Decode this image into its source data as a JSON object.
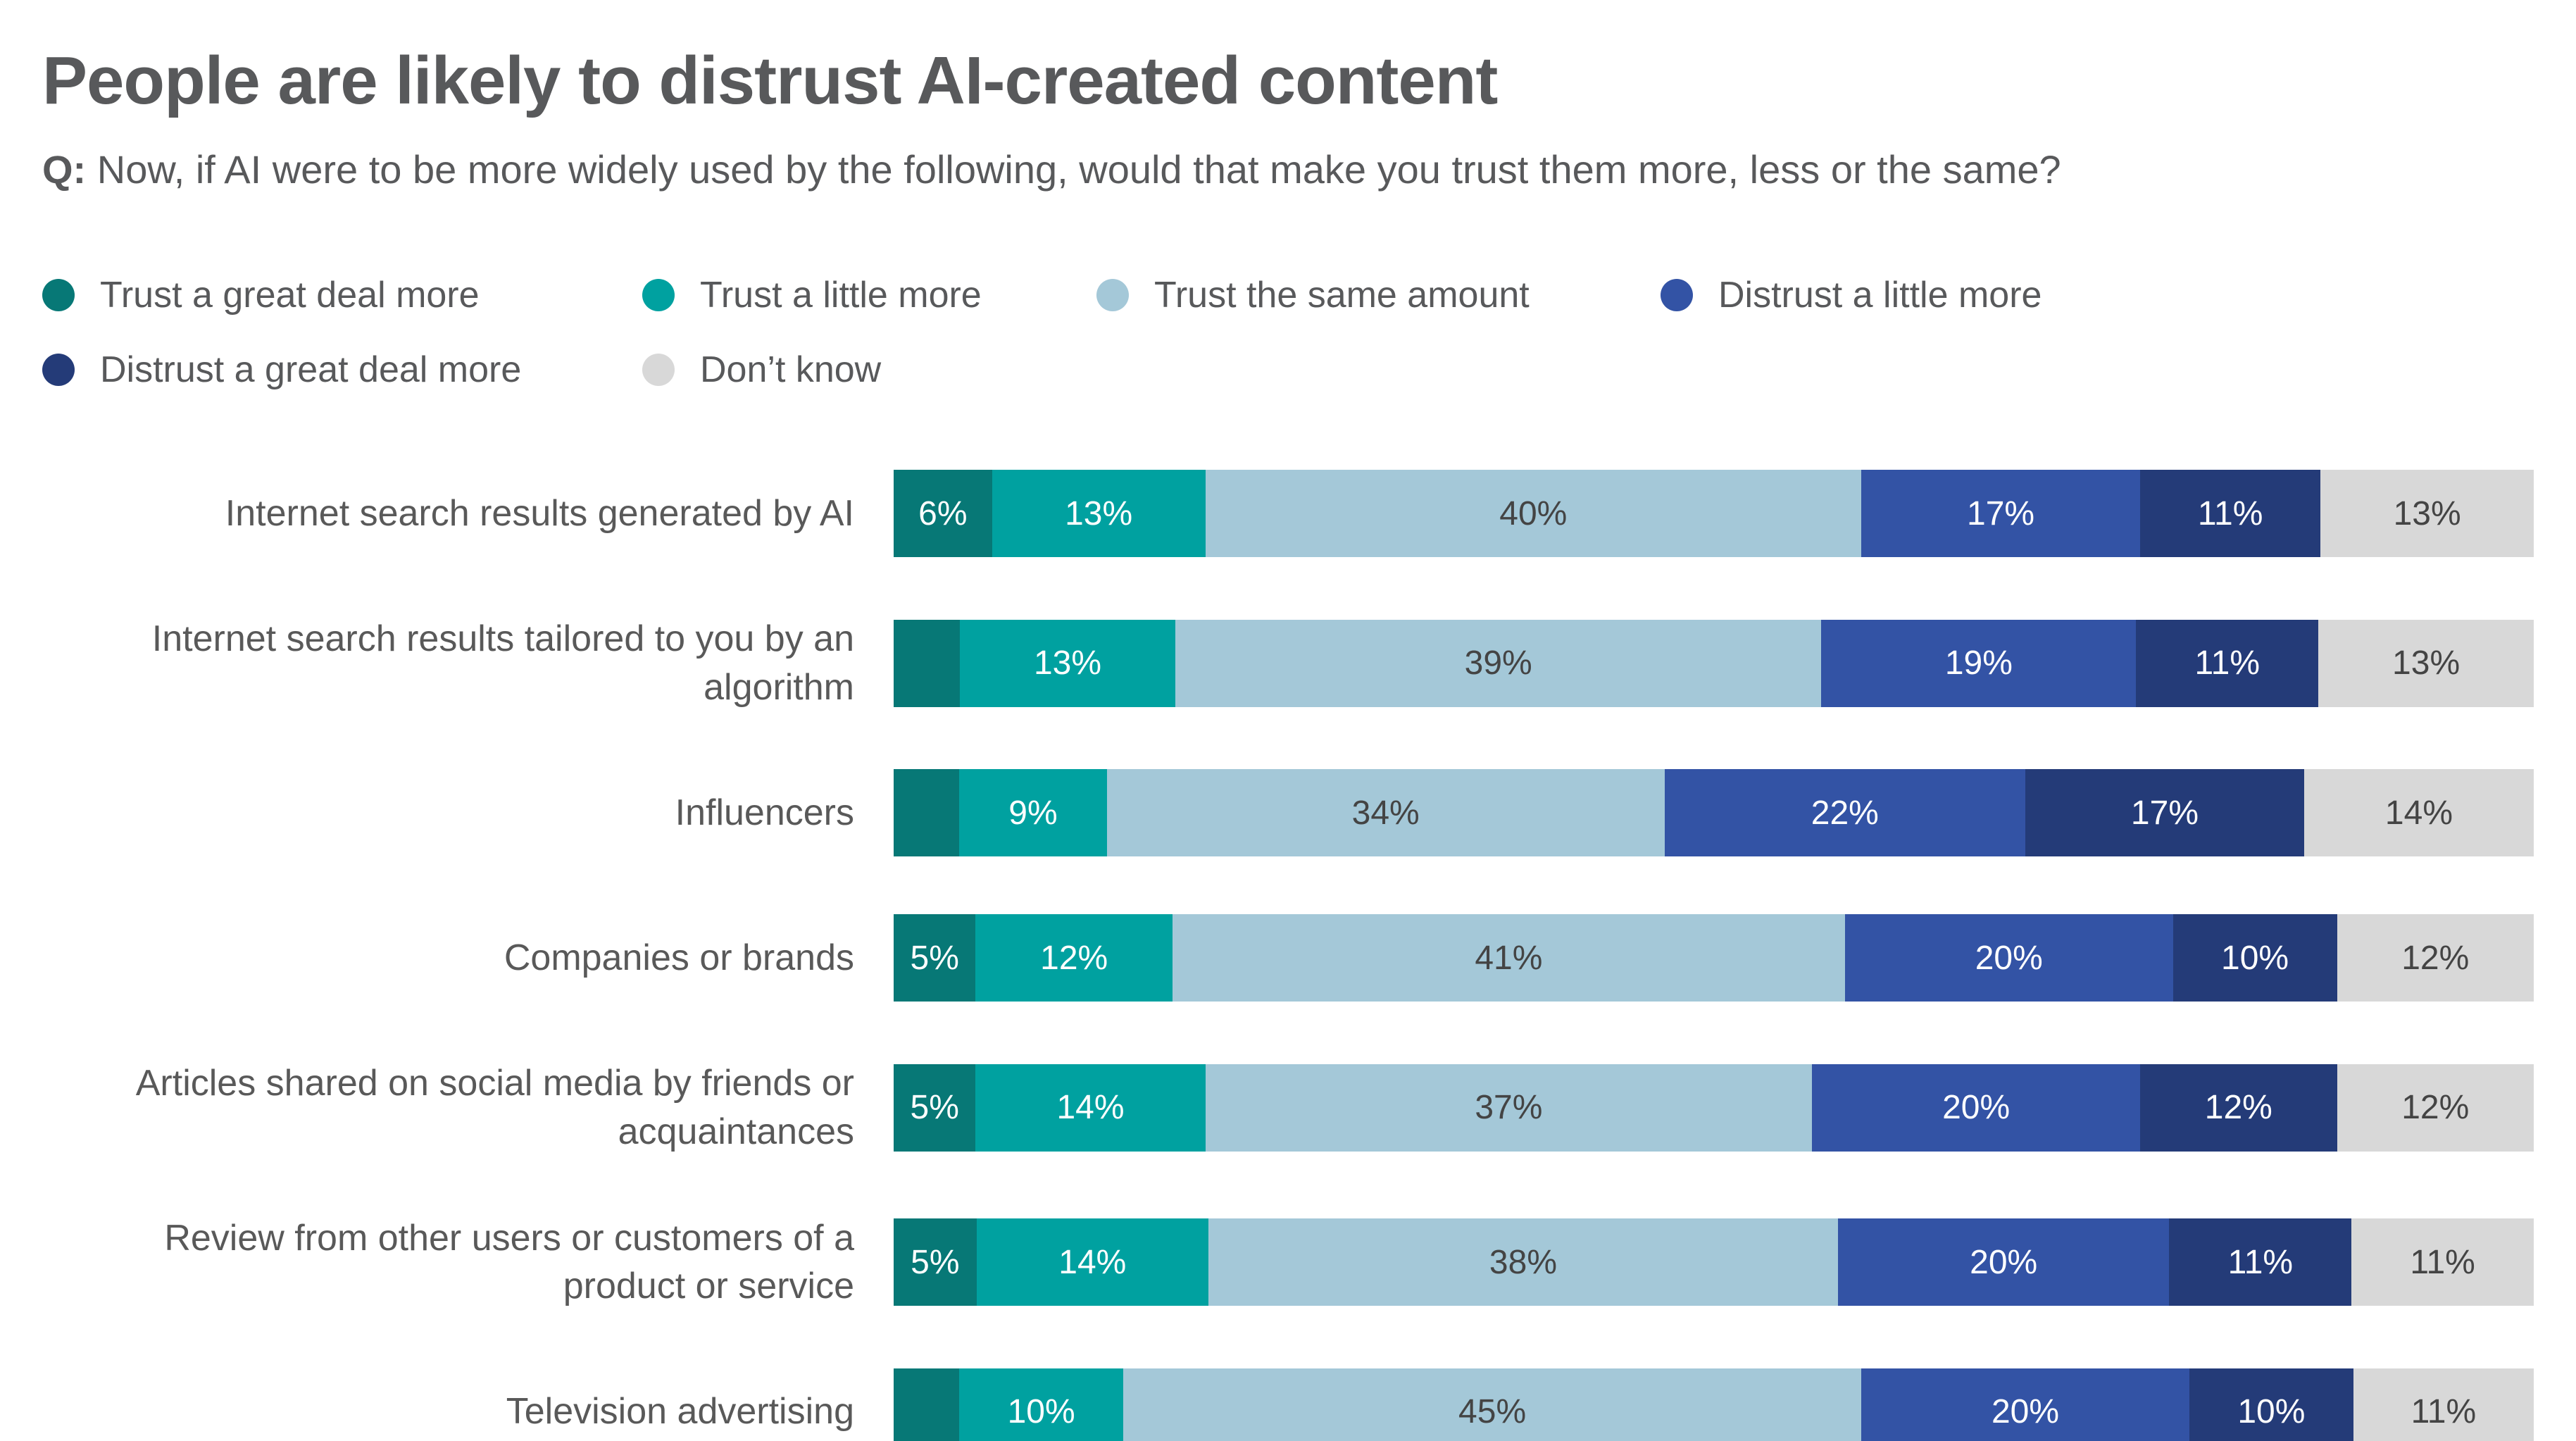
{
  "header": {
    "title": "People are likely to distrust AI-created content",
    "question_prefix": "Q:",
    "question": "Now, if AI were to be more widely used by the following, would that make you trust them more, less or the same?"
  },
  "colors": {
    "heading_text": "#58595B",
    "category_text": "#595959",
    "value_text_dark": "#444444",
    "value_text_light": "#FFFFFF",
    "background": "#FFFFFF"
  },
  "chart_data": {
    "type": "bar",
    "orientation": "horizontal",
    "stacked": true,
    "axis_visible": false,
    "grid": false,
    "legend_position": "top",
    "xlim": [
      0,
      100
    ],
    "unit": "%",
    "series": [
      {
        "name": "Trust a great deal more",
        "color": "#077876"
      },
      {
        "name": "Trust a little more",
        "color": "#00A1A0"
      },
      {
        "name": "Trust the same amount",
        "color": "#A4C8D8"
      },
      {
        "name": "Distrust a little more",
        "color": "#3353A5"
      },
      {
        "name": "Distrust a great deal more",
        "color": "#243B78"
      },
      {
        "name": "Don’t know",
        "color": "#D8D8D8"
      }
    ],
    "value_label_colors": [
      "#FFFFFF",
      "#FFFFFF",
      "#444444",
      "#FFFFFF",
      "#FFFFFF",
      "#444444"
    ],
    "rows": [
      {
        "category": "Internet search results generated by AI",
        "values": [
          6,
          13,
          40,
          17,
          11,
          13
        ],
        "labels": [
          "6%",
          "13%",
          "40%",
          "17%",
          "11%",
          "13%"
        ]
      },
      {
        "category": "Internet search results tailored to you by an algorithm",
        "values": [
          4,
          13,
          39,
          19,
          11,
          13
        ],
        "labels": [
          "",
          "13%",
          "39%",
          "19%",
          "11%",
          "13%"
        ]
      },
      {
        "category": "Influencers",
        "values": [
          4,
          9,
          34,
          22,
          17,
          14
        ],
        "labels": [
          "",
          "9%",
          "34%",
          "22%",
          "17%",
          "14%"
        ]
      },
      {
        "category": "Companies or brands",
        "values": [
          5,
          12,
          41,
          20,
          10,
          12
        ],
        "labels": [
          "5%",
          "12%",
          "41%",
          "20%",
          "10%",
          "12%"
        ]
      },
      {
        "category": "Articles shared on social media by friends or acquaintances",
        "values": [
          5,
          14,
          37,
          20,
          12,
          12
        ],
        "labels": [
          "5%",
          "14%",
          "37%",
          "20%",
          "12%",
          "12%"
        ]
      },
      {
        "category": "Review from other users or customers of a product or service",
        "values": [
          5,
          14,
          38,
          20,
          11,
          11
        ],
        "labels": [
          "5%",
          "14%",
          "38%",
          "20%",
          "11%",
          "11%"
        ]
      },
      {
        "category": "Television advertising",
        "values": [
          4,
          10,
          45,
          20,
          10,
          11
        ],
        "labels": [
          "",
          "10%",
          "45%",
          "20%",
          "10%",
          "11%"
        ]
      }
    ]
  }
}
